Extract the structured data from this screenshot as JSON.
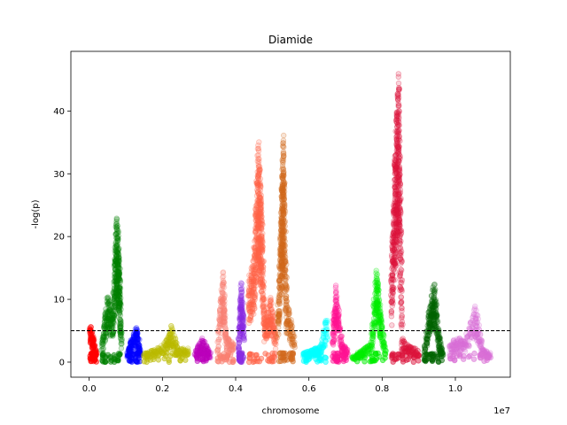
{
  "chart_data": {
    "type": "scatter",
    "title": "Diamide",
    "xlabel": "chromosome",
    "ylabel": "-log(p)",
    "x_offset_label": "1e7",
    "xlim": [
      -500000,
      11500000
    ],
    "ylim": [
      -2.4,
      49.5
    ],
    "x_ticks": [
      0,
      2000000,
      4000000,
      6000000,
      8000000,
      10000000
    ],
    "x_tick_labels": [
      "0.0",
      "0.2",
      "0.4",
      "0.6",
      "0.8",
      "1.0"
    ],
    "y_ticks": [
      0,
      10,
      20,
      30,
      40
    ],
    "y_tick_labels": [
      "0",
      "10",
      "20",
      "30",
      "40"
    ],
    "threshold": 5,
    "grid": false,
    "series": [
      {
        "color": "#ff0000",
        "peaks": [
          [
            20000,
            6.2
          ],
          [
            100000,
            4.5
          ],
          [
            200000,
            1.5
          ]
        ]
      },
      {
        "color": "#008000",
        "peaks": [
          [
            350000,
            3.5
          ],
          [
            500000,
            10.8
          ],
          [
            650000,
            8.0
          ],
          [
            750000,
            24.0
          ],
          [
            820000,
            17.0
          ],
          [
            880000,
            4.0
          ]
        ]
      },
      {
        "color": "#0000ff",
        "peaks": [
          [
            1050000,
            1.5
          ],
          [
            1150000,
            3.5
          ],
          [
            1300000,
            5.8
          ],
          [
            1400000,
            2.0
          ]
        ]
      },
      {
        "color": "#bbbb00",
        "peaks": [
          [
            1500000,
            1.5
          ],
          [
            1800000,
            2.0
          ],
          [
            2100000,
            3.5
          ],
          [
            2250000,
            5.8
          ],
          [
            2450000,
            2.0
          ],
          [
            2700000,
            2.5
          ]
        ]
      },
      {
        "color": "#bb00bb",
        "peaks": [
          [
            2900000,
            2.0
          ],
          [
            3100000,
            3.8
          ],
          [
            3300000,
            1.5
          ]
        ]
      },
      {
        "color": "#fa8072",
        "peaks": [
          [
            3500000,
            2.5
          ],
          [
            3650000,
            14.5
          ],
          [
            3750000,
            4.0
          ],
          [
            3950000,
            3.0
          ]
        ]
      },
      {
        "color": "#8a2be2",
        "peaks": [
          [
            4080000,
            3.5
          ],
          [
            4150000,
            13.0
          ],
          [
            4220000,
            6.5
          ]
        ]
      },
      {
        "color": "#ff6347",
        "peaks": [
          [
            4350000,
            13.0
          ],
          [
            4500000,
            17.0
          ],
          [
            4620000,
            35.5
          ],
          [
            4700000,
            26.0
          ],
          [
            4800000,
            7.0
          ],
          [
            4950000,
            10.5
          ],
          [
            5100000,
            4.5
          ]
        ]
      },
      {
        "color": "#d2691e",
        "peaks": [
          [
            5150000,
            8.0
          ],
          [
            5250000,
            25.0
          ],
          [
            5300000,
            36.5
          ],
          [
            5400000,
            10.0
          ],
          [
            5600000,
            4.5
          ]
        ]
      },
      {
        "color": "#00ffff",
        "peaks": [
          [
            5850000,
            1.5
          ],
          [
            6100000,
            2.0
          ],
          [
            6300000,
            2.5
          ],
          [
            6500000,
            7.5
          ]
        ]
      },
      {
        "color": "#ff1493",
        "peaks": [
          [
            6650000,
            5.0
          ],
          [
            6750000,
            12.5
          ],
          [
            6900000,
            3.0
          ],
          [
            7050000,
            2.0
          ]
        ]
      },
      {
        "color": "#00ee00",
        "peaks": [
          [
            7200000,
            1.0
          ],
          [
            7450000,
            2.0
          ],
          [
            7700000,
            3.0
          ],
          [
            7850000,
            15.5
          ],
          [
            7950000,
            8.0
          ],
          [
            8100000,
            2.0
          ]
        ]
      },
      {
        "color": "#dc143c",
        "peaks": [
          [
            8250000,
            13.0
          ],
          [
            8350000,
            33.0
          ],
          [
            8450000,
            47.0
          ],
          [
            8550000,
            4.0
          ],
          [
            8750000,
            2.5
          ],
          [
            9000000,
            2.0
          ]
        ]
      },
      {
        "color": "#006400",
        "peaks": [
          [
            9150000,
            2.0
          ],
          [
            9300000,
            9.0
          ],
          [
            9420000,
            13.0
          ],
          [
            9550000,
            4.5
          ],
          [
            9650000,
            1.5
          ]
        ]
      },
      {
        "color": "#da70d6",
        "peaks": [
          [
            9850000,
            3.0
          ],
          [
            10050000,
            4.0
          ],
          [
            10250000,
            3.5
          ],
          [
            10550000,
            9.0
          ],
          [
            10750000,
            2.0
          ],
          [
            10950000,
            1.5
          ]
        ]
      }
    ]
  }
}
